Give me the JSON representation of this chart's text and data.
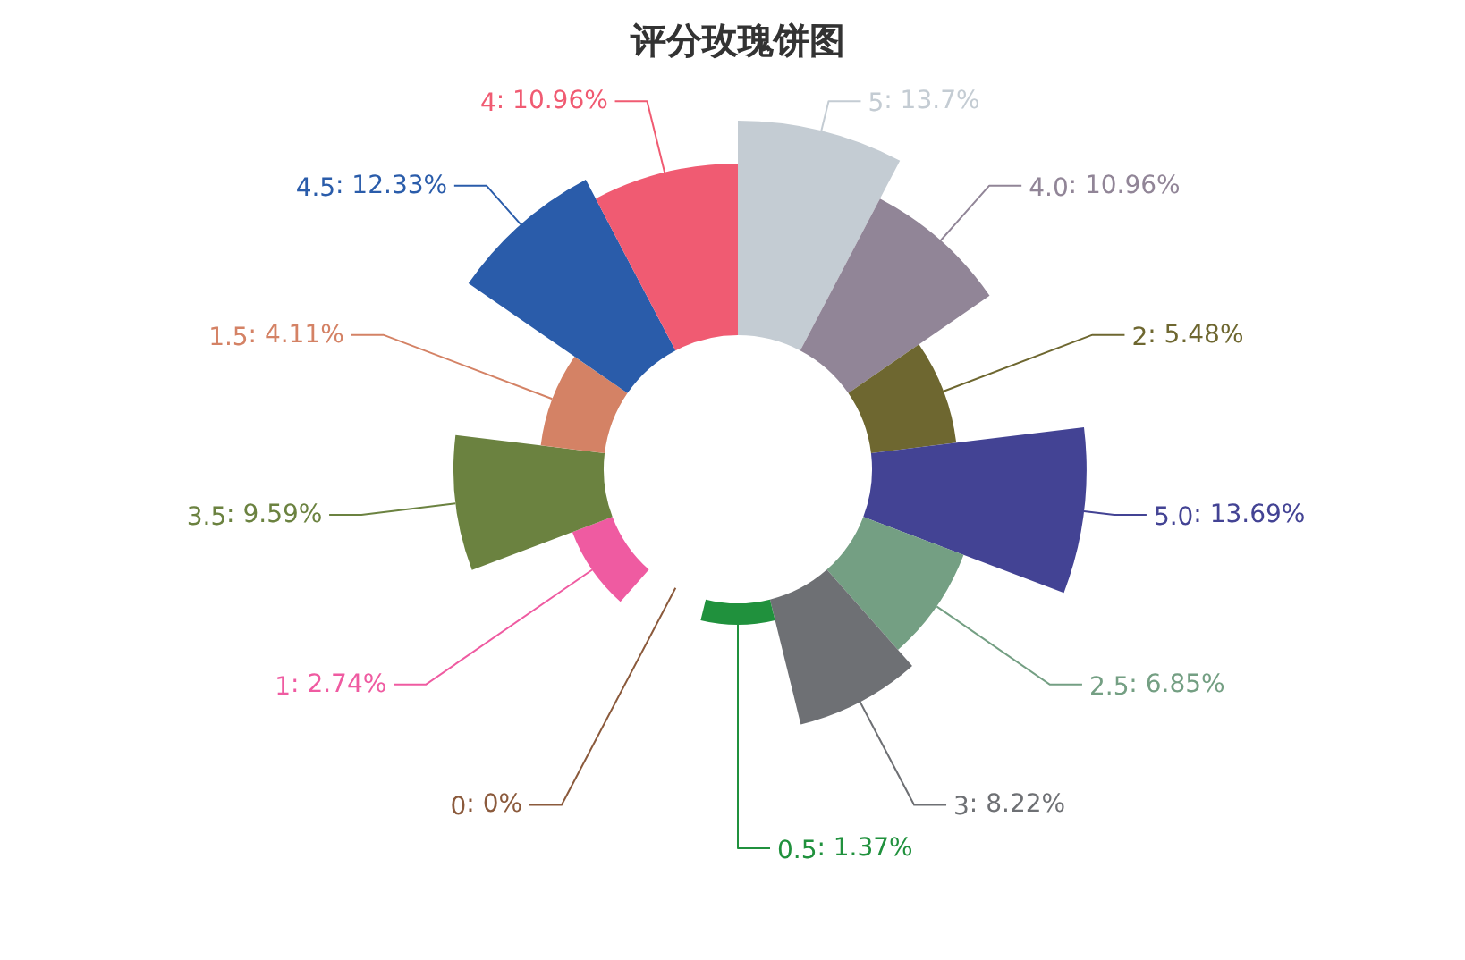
{
  "chart_data": {
    "type": "other",
    "title": "评分玫瑰饼图",
    "data_labels": true,
    "categories": [
      "5",
      "4.0",
      "2",
      "5.0",
      "2.5",
      "3",
      "0.5",
      "0",
      "1",
      "3.5",
      "1.5",
      "4.5",
      "4"
    ],
    "values": [
      13.7,
      10.96,
      5.48,
      13.69,
      6.85,
      8.22,
      1.37,
      0,
      2.74,
      9.59,
      4.11,
      12.33,
      10.96
    ],
    "colors": [
      "#c4ccd3",
      "#918597",
      "#6e6730",
      "#434394",
      "#749f83",
      "#6e7074",
      "#20913d",
      "#8b5a3c",
      "#ef5ba1",
      "#6b8240",
      "#d48265",
      "#2a5caa",
      "#f05b72"
    ],
    "value_labels": [
      ": 13.7%",
      ": 10.96%",
      ": 5.48%",
      ": 13.69%",
      ": 6.85%",
      ": 8.22%",
      ": 1.37%",
      ": 0%",
      ": 2.74%",
      ": 9.59%",
      ": 4.11%",
      ": 12.33%",
      ": 10.96%"
    ]
  }
}
